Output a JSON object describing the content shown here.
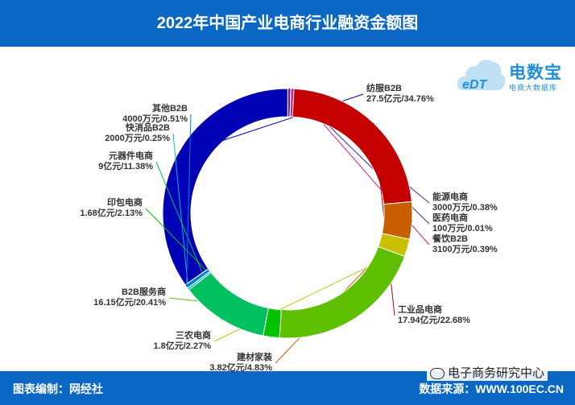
{
  "header": {
    "title": "2022年中国产业电商行业融资金额图"
  },
  "footer": {
    "left": "图表编制：网经社",
    "right": "数据来源：WWW.100EC.CN"
  },
  "watermark": {
    "text": "电子商务研究中心",
    "icon": "wechat-icon"
  },
  "logo": {
    "cn": "电数宝",
    "en": "eDT",
    "sub": "电商大数据库"
  },
  "chart_data": {
    "type": "pie",
    "donut": true,
    "title": "2022年中国产业电商行业融资金额图",
    "slices": [
      {
        "name": "纺服B2B",
        "value": 27.5,
        "display": "27.5亿元/34.76%",
        "percent": 34.76,
        "color": "#0000b4"
      },
      {
        "name": "能源电商",
        "value": 0.3,
        "display": "3000万元/0.38%",
        "percent": 0.38,
        "color": "#6a1a9a"
      },
      {
        "name": "医药电商",
        "value": 0.01,
        "display": "100万元/0.01%",
        "percent": 0.01,
        "color": "#2d2d8a"
      },
      {
        "name": "餐饮B2B",
        "value": 0.31,
        "display": "3100万元/0.39%",
        "percent": 0.39,
        "color": "#d21a8a"
      },
      {
        "name": "工业品电商",
        "value": 17.94,
        "display": "17.94亿元/22.68%",
        "percent": 22.68,
        "color": "#c40000"
      },
      {
        "name": "建材家装",
        "value": 3.82,
        "display": "3.82亿元/4.83%",
        "percent": 4.83,
        "color": "#c85f00"
      },
      {
        "name": "三农电商",
        "value": 1.8,
        "display": "1.8亿元/2.27%",
        "percent": 2.27,
        "color": "#c8c000"
      },
      {
        "name": "B2B服务商",
        "value": 16.15,
        "display": "16.15亿元/20.41%",
        "percent": 20.41,
        "color": "#5ec000"
      },
      {
        "name": "印包电商",
        "value": 1.68,
        "display": "1.68亿元/2.13%",
        "percent": 2.13,
        "color": "#00c400"
      },
      {
        "name": "元器件电商",
        "value": 9,
        "display": "9亿元/11.38%",
        "percent": 11.38,
        "color": "#00c060"
      },
      {
        "name": "快消品B2B",
        "value": 0.2,
        "display": "2000万元/0.25%",
        "percent": 0.25,
        "color": "#00b8c8"
      },
      {
        "name": "其他B2B",
        "value": 0.4,
        "display": "4000万元/0.51%",
        "percent": 0.51,
        "color": "#0080d0"
      }
    ]
  }
}
